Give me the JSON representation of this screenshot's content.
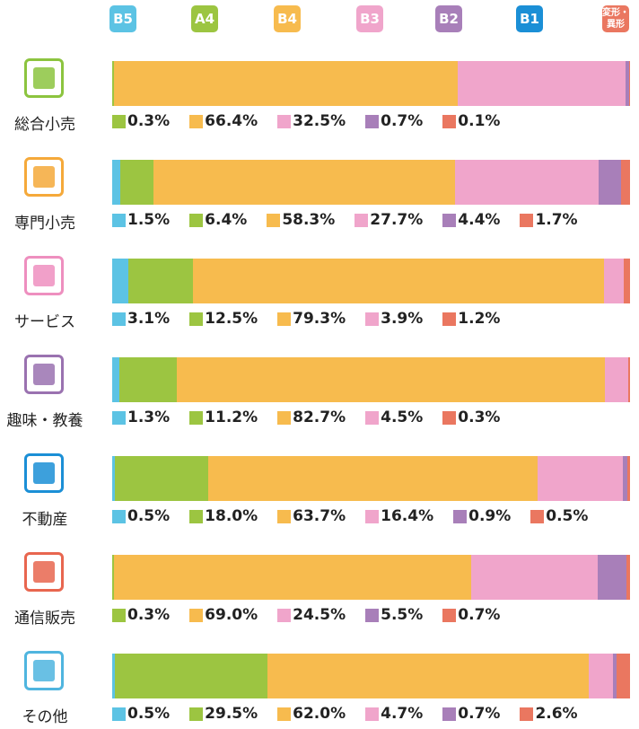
{
  "chart_data": {
    "type": "stacked_bar_horizontal",
    "categories": [
      "総合小売",
      "専門小売",
      "サービス",
      "趣味・教養",
      "不動産",
      "通信販売",
      "その他"
    ],
    "xlim": [
      0,
      100
    ],
    "series": [
      {
        "name": "B5",
        "color": "#5cc3e4",
        "values": [
          null,
          1.5,
          3.1,
          1.3,
          0.5,
          null,
          0.5
        ],
        "value_labels": [
          null,
          "1.5%",
          "3.1%",
          "1.3%",
          "0.5%",
          null,
          "0.5%"
        ]
      },
      {
        "name": "A4",
        "color": "#9cc541",
        "values": [
          0.3,
          6.4,
          12.5,
          11.2,
          18.0,
          0.3,
          29.5
        ],
        "value_labels": [
          "0.3%",
          "6.4%",
          "12.5%",
          "11.2%",
          "18.0%",
          "0.3%",
          "29.5%"
        ]
      },
      {
        "name": "B4",
        "color": "#f7bb4e",
        "values": [
          66.4,
          58.3,
          79.3,
          82.7,
          63.7,
          69.0,
          62.0
        ],
        "value_labels": [
          "66.4%",
          "58.3%",
          "79.3%",
          "82.7%",
          "63.7%",
          "69.0%",
          "62.0%"
        ]
      },
      {
        "name": "B3",
        "color": "#f0a5cb",
        "values": [
          32.5,
          27.7,
          3.9,
          4.5,
          16.4,
          24.5,
          4.7
        ],
        "value_labels": [
          "32.5%",
          "27.7%",
          "3.9%",
          "4.5%",
          "16.4%",
          "24.5%",
          "4.7%"
        ]
      },
      {
        "name": "B2",
        "color": "#a87fb9",
        "values": [
          0.7,
          4.4,
          null,
          null,
          0.9,
          5.5,
          0.7
        ],
        "value_labels": [
          "0.7%",
          "4.4%",
          null,
          null,
          "0.9%",
          "5.5%",
          "0.7%"
        ]
      },
      {
        "name": "B1",
        "color": "#1b8fd6",
        "values": [
          null,
          null,
          null,
          null,
          null,
          null,
          null
        ],
        "value_labels": [
          null,
          null,
          null,
          null,
          null,
          null,
          null
        ]
      },
      {
        "name": "変形・異形",
        "color": "#ea7760",
        "values": [
          0.1,
          1.7,
          1.2,
          0.3,
          0.5,
          0.7,
          2.6
        ],
        "value_labels": [
          "0.1%",
          "1.7%",
          "1.2%",
          "0.3%",
          "0.5%",
          "0.7%",
          "2.6%"
        ]
      }
    ]
  }
}
